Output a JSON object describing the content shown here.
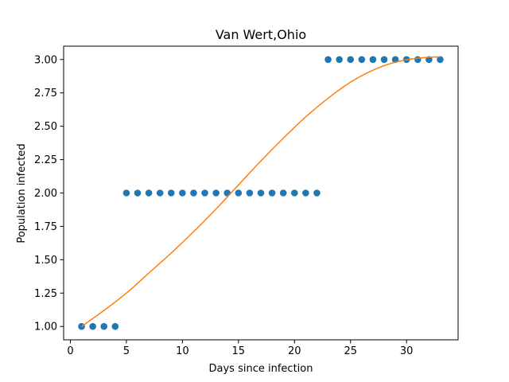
{
  "chart_data": {
    "type": "scatter",
    "title": "Van Wert,Ohio",
    "xlabel": "Days since infection",
    "ylabel": "Population infected",
    "xlim": [
      -0.6,
      34.6
    ],
    "ylim": [
      0.9,
      3.1
    ],
    "x_ticks": [
      0,
      5,
      10,
      15,
      20,
      25,
      30
    ],
    "x_tick_labels": [
      "0",
      "5",
      "10",
      "15",
      "20",
      "25",
      "30"
    ],
    "y_ticks": [
      1.0,
      1.25,
      1.5,
      1.75,
      2.0,
      2.25,
      2.5,
      2.75,
      3.0
    ],
    "y_tick_labels": [
      "1.00",
      "1.25",
      "1.50",
      "1.75",
      "2.00",
      "2.25",
      "2.50",
      "2.75",
      "3.00"
    ],
    "grid": false,
    "legend": "none",
    "series": [
      {
        "kind": "scatter",
        "color": "#1f77b4",
        "x": [
          1,
          2,
          3,
          4,
          5,
          6,
          7,
          8,
          9,
          10,
          11,
          12,
          13,
          14,
          15,
          16,
          17,
          18,
          19,
          20,
          21,
          22,
          23,
          24,
          25,
          26,
          27,
          28,
          29,
          30,
          31,
          32,
          33
        ],
        "y": [
          1,
          1,
          1,
          1,
          2,
          2,
          2,
          2,
          2,
          2,
          2,
          2,
          2,
          2,
          2,
          2,
          2,
          2,
          2,
          2,
          2,
          2,
          3,
          3,
          3,
          3,
          3,
          3,
          3,
          3,
          3,
          3,
          3
        ]
      },
      {
        "kind": "line",
        "color": "#ff7f0e",
        "x": [
          1,
          3,
          5,
          7,
          9,
          11,
          13,
          15,
          17,
          19,
          21,
          23,
          25,
          27,
          29,
          31,
          33
        ],
        "y": [
          1.0,
          1.12,
          1.25,
          1.4,
          1.55,
          1.71,
          1.88,
          2.06,
          2.24,
          2.41,
          2.57,
          2.71,
          2.83,
          2.92,
          2.98,
          3.01,
          3.02
        ]
      }
    ]
  }
}
